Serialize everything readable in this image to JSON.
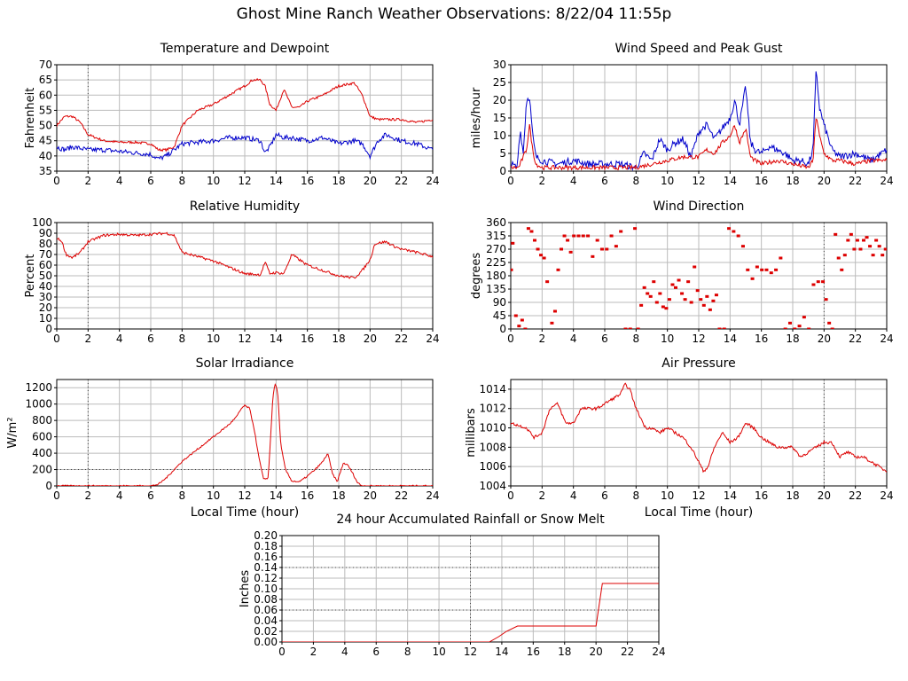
{
  "title": "Ghost Mine Ranch Weather Observations: 8/22/04 11:55p",
  "colors": {
    "red": "#dd0000",
    "blue": "#0000cc",
    "grid": "#bbbbbb",
    "ref": "#444444"
  },
  "chart_data": [
    {
      "id": "temp",
      "type": "line",
      "title": "Temperature and Dewpoint",
      "xlabel": "",
      "ylabel": "Fahrenheit",
      "xlim": [
        0,
        24
      ],
      "ylim": [
        35,
        70
      ],
      "xticks": [
        0,
        2,
        4,
        6,
        8,
        10,
        12,
        14,
        16,
        18,
        20,
        22,
        24
      ],
      "yticks": [
        35,
        40,
        45,
        50,
        55,
        60,
        65,
        70
      ],
      "ref_x": [
        2
      ],
      "ref_y": [],
      "series": [
        {
          "color": "red",
          "noise": 0.4,
          "x": [
            0,
            0.5,
            1,
            1.5,
            2,
            3,
            4,
            5,
            6,
            6.5,
            7,
            7.5,
            8,
            9,
            10,
            11,
            12,
            12.5,
            13,
            13.3,
            13.6,
            14,
            14.5,
            15,
            15.5,
            16,
            17,
            18,
            19,
            19.5,
            20,
            20.5,
            21,
            22,
            23,
            24
          ],
          "y": [
            50,
            53,
            53,
            51,
            47,
            45,
            44.5,
            44.5,
            44,
            42,
            42,
            43,
            50,
            55,
            57,
            60,
            63,
            65,
            65,
            63,
            57,
            55,
            62,
            56,
            56,
            58,
            60,
            63,
            64,
            60,
            53,
            52,
            52,
            52,
            51,
            52
          ]
        },
        {
          "color": "blue",
          "noise": 0.8,
          "x": [
            0,
            0.5,
            1,
            2,
            3,
            4,
            5,
            6,
            6.5,
            7,
            8,
            9,
            10,
            11,
            12,
            13,
            13.3,
            13.6,
            14,
            14.5,
            15,
            16,
            17,
            18,
            19,
            19.5,
            20,
            20.5,
            21,
            22,
            23,
            24
          ],
          "y": [
            43,
            42,
            43,
            42,
            42,
            41.5,
            41,
            40.5,
            39,
            40,
            44,
            44.5,
            45,
            46,
            46,
            45,
            41,
            43,
            47,
            46,
            46,
            45,
            46,
            44,
            45,
            44,
            40,
            45,
            47,
            45,
            44,
            42
          ]
        }
      ]
    },
    {
      "id": "wind",
      "type": "line",
      "title": "Wind Speed and Peak Gust",
      "xlabel": "",
      "ylabel": "miles/hour",
      "xlim": [
        0,
        24
      ],
      "ylim": [
        0,
        30
      ],
      "xticks": [
        0,
        2,
        4,
        6,
        8,
        10,
        12,
        14,
        16,
        18,
        20,
        22,
        24
      ],
      "yticks": [
        0,
        5,
        10,
        15,
        20,
        25,
        30
      ],
      "ref_x": [],
      "ref_y": [],
      "series": [
        {
          "color": "blue",
          "noise": 1.0,
          "x": [
            0,
            0.4,
            0.6,
            0.8,
            1,
            1.2,
            1.4,
            1.6,
            2,
            3,
            4,
            5,
            6,
            7,
            8,
            8.5,
            9,
            9.5,
            10,
            10.5,
            11,
            11.5,
            12,
            12.5,
            13,
            13.5,
            14,
            14.3,
            14.6,
            15,
            15.3,
            15.6,
            16,
            16.5,
            17,
            17.5,
            18,
            18.5,
            19,
            19.3,
            19.5,
            19.7,
            20,
            20.5,
            21,
            22,
            23,
            24
          ],
          "y": [
            2,
            1,
            12,
            5,
            20,
            21,
            10,
            4,
            3,
            2,
            3,
            2,
            2,
            2,
            1,
            5,
            3,
            9,
            6,
            8,
            9,
            4,
            11,
            13,
            9,
            12,
            15,
            20,
            13,
            24,
            8,
            6,
            5,
            7,
            6,
            5,
            3,
            3,
            2,
            6,
            29,
            18,
            13,
            6,
            4,
            5,
            3,
            6
          ]
        },
        {
          "color": "red",
          "noise": 0.6,
          "x": [
            0,
            0.5,
            1,
            1.2,
            1.4,
            1.6,
            2,
            3,
            4,
            5,
            6,
            7,
            8,
            9,
            10,
            11,
            12,
            12.5,
            13,
            13.5,
            14,
            14.3,
            14.6,
            15,
            15.3,
            15.6,
            16,
            17,
            18,
            19,
            19.3,
            19.5,
            19.7,
            20,
            20.5,
            21,
            22,
            23,
            24
          ],
          "y": [
            1,
            1,
            6,
            13,
            6,
            2,
            1,
            1,
            1,
            1,
            1,
            1,
            1,
            2,
            3,
            4,
            4,
            6,
            5,
            8,
            10,
            13,
            8,
            12,
            4,
            3,
            2,
            3,
            2,
            1,
            3,
            16,
            10,
            5,
            3,
            3,
            2,
            3,
            3
          ]
        }
      ]
    },
    {
      "id": "rh",
      "type": "line",
      "title": "Relative Humidity",
      "xlabel": "",
      "ylabel": "Percent",
      "xlim": [
        0,
        24
      ],
      "ylim": [
        0,
        100
      ],
      "xticks": [
        0,
        2,
        4,
        6,
        8,
        10,
        12,
        14,
        16,
        18,
        20,
        22,
        24
      ],
      "yticks": [
        0,
        10,
        20,
        30,
        40,
        50,
        60,
        70,
        80,
        90,
        100
      ],
      "ref_x": [
        2
      ],
      "ref_y": [],
      "series": [
        {
          "color": "red",
          "noise": 1.2,
          "x": [
            0,
            0.3,
            0.6,
            1,
            1.5,
            2,
            3,
            4,
            5,
            6,
            7,
            7.5,
            8,
            9,
            10,
            11,
            12,
            13,
            13.3,
            13.6,
            14,
            14.5,
            15,
            15.5,
            16,
            17,
            18,
            19,
            19.5,
            20,
            20.3,
            21,
            21.5,
            22,
            23,
            24
          ],
          "y": [
            85,
            83,
            70,
            67,
            72,
            82,
            88,
            89,
            88,
            89,
            90,
            88,
            72,
            68,
            64,
            58,
            52,
            51,
            63,
            52,
            53,
            52,
            70,
            65,
            60,
            55,
            50,
            48,
            55,
            65,
            80,
            82,
            78,
            75,
            72,
            68
          ]
        }
      ]
    },
    {
      "id": "dir",
      "type": "scatter",
      "title": "Wind Direction",
      "xlabel": "",
      "ylabel": "degrees",
      "xlim": [
        0,
        24
      ],
      "ylim": [
        0,
        360
      ],
      "xticks": [
        0,
        2,
        4,
        6,
        8,
        10,
        12,
        14,
        16,
        18,
        20,
        22,
        24
      ],
      "yticks": [
        0,
        45,
        90,
        135,
        180,
        225,
        270,
        315,
        360
      ],
      "ref_x": [
        20
      ],
      "ref_y": [],
      "series": [
        {
          "color": "red",
          "noise": 0,
          "x": [
            0,
            0.1,
            0.3,
            0.5,
            0.7,
            0.9,
            1.1,
            1.3,
            1.5,
            1.7,
            1.9,
            2.1,
            2.3,
            2.6,
            2.8,
            3,
            3.2,
            3.4,
            3.6,
            3.8,
            4,
            4.3,
            4.6,
            4.9,
            5.2,
            5.5,
            5.8,
            6.1,
            6.4,
            6.7,
            7,
            7.3,
            7.6,
            7.9,
            8.1,
            8.3,
            8.5,
            8.7,
            8.9,
            9.1,
            9.3,
            9.5,
            9.7,
            9.9,
            10.1,
            10.3,
            10.5,
            10.7,
            10.9,
            11.1,
            11.3,
            11.5,
            11.7,
            11.9,
            12.1,
            12.3,
            12.5,
            12.7,
            12.9,
            13.1,
            13.3,
            13.6,
            13.9,
            14.2,
            14.5,
            14.8,
            15.1,
            15.4,
            15.7,
            16,
            16.3,
            16.6,
            16.9,
            17.2,
            17.5,
            17.8,
            18.1,
            18.4,
            18.7,
            19,
            19.3,
            19.6,
            19.9,
            20.1,
            20.3,
            20.5,
            20.7,
            20.9,
            21.1,
            21.3,
            21.5,
            21.7,
            21.9,
            22.1,
            22.3,
            22.5,
            22.7,
            22.9,
            23.1,
            23.3,
            23.5,
            23.7,
            23.9
          ],
          "y": [
            200,
            290,
            45,
            10,
            30,
            0,
            340,
            330,
            300,
            270,
            250,
            240,
            160,
            20,
            60,
            200,
            270,
            315,
            300,
            260,
            315,
            315,
            315,
            315,
            245,
            300,
            270,
            270,
            315,
            280,
            330,
            0,
            0,
            340,
            0,
            80,
            140,
            120,
            110,
            160,
            90,
            120,
            75,
            70,
            100,
            150,
            140,
            165,
            120,
            100,
            160,
            90,
            210,
            130,
            100,
            80,
            110,
            65,
            95,
            115,
            0,
            0,
            340,
            330,
            315,
            280,
            200,
            170,
            210,
            200,
            200,
            190,
            200,
            240,
            0,
            20,
            0,
            10,
            40,
            0,
            150,
            160,
            160,
            100,
            20,
            0,
            320,
            240,
            200,
            250,
            300,
            320,
            270,
            300,
            270,
            300,
            310,
            280,
            250,
            300,
            280,
            250,
            270
          ]
        }
      ]
    },
    {
      "id": "solar",
      "type": "line",
      "title": "Solar Irradiance",
      "xlabel": "Local Time (hour)",
      "ylabel": "W/m²",
      "xlim": [
        0,
        24
      ],
      "ylim": [
        0,
        1300
      ],
      "xticks": [
        0,
        2,
        4,
        6,
        8,
        10,
        12,
        14,
        16,
        18,
        20,
        22,
        24
      ],
      "yticks": [
        0,
        200,
        400,
        600,
        800,
        1000,
        1200
      ],
      "ref_x": [
        2
      ],
      "ref_y": [
        200
      ],
      "series": [
        {
          "color": "red",
          "noise": 10,
          "x": [
            0,
            6,
            6.5,
            7,
            7.5,
            8,
            9,
            10,
            11,
            11.5,
            11.8,
            12,
            12.3,
            12.6,
            12.9,
            13.2,
            13.5,
            13.8,
            13.95,
            14.1,
            14.3,
            14.6,
            15,
            15.5,
            16,
            16.5,
            17,
            17.3,
            17.6,
            17.9,
            18.3,
            18.6,
            18.9,
            19.2,
            19.5,
            20,
            24
          ],
          "y": [
            0,
            0,
            20,
            100,
            200,
            300,
            450,
            600,
            750,
            850,
            950,
            980,
            950,
            700,
            350,
            80,
            100,
            1100,
            1250,
            1150,
            500,
            200,
            60,
            50,
            120,
            200,
            300,
            400,
            150,
            50,
            280,
            250,
            150,
            40,
            0,
            0,
            0
          ]
        }
      ]
    },
    {
      "id": "press",
      "type": "line",
      "title": "Air Pressure",
      "xlabel": "Local Time (hour)",
      "ylabel": "millibars",
      "xlim": [
        0,
        24
      ],
      "ylim": [
        1004,
        1015
      ],
      "xticks": [
        0,
        2,
        4,
        6,
        8,
        10,
        12,
        14,
        16,
        18,
        20,
        22,
        24
      ],
      "yticks": [
        1004,
        1006,
        1008,
        1010,
        1012,
        1014
      ],
      "ref_x": [
        20
      ],
      "ref_y": [],
      "series": [
        {
          "color": "red",
          "noise": 0.15,
          "x": [
            0,
            1,
            1.5,
            2,
            2.5,
            3,
            3.5,
            4,
            4.5,
            5,
            5.5,
            6,
            6.5,
            7,
            7.3,
            7.6,
            8,
            8.3,
            8.6,
            9,
            9.5,
            10,
            10.5,
            11,
            11.5,
            12,
            12.3,
            12.6,
            13,
            13.5,
            14,
            14.5,
            15,
            15.5,
            16,
            16.5,
            17,
            18,
            18.5,
            19,
            19.5,
            20,
            20.5,
            21,
            21.5,
            22,
            22.5,
            23,
            23.5,
            24
          ],
          "y": [
            1010.5,
            1010,
            1009,
            1009.5,
            1012,
            1012.5,
            1010.5,
            1010.5,
            1012,
            1012,
            1012,
            1012.5,
            1013,
            1013.5,
            1014.5,
            1014,
            1012,
            1011,
            1010,
            1010,
            1009.5,
            1010,
            1009.5,
            1009,
            1008,
            1006.5,
            1005.5,
            1006,
            1008,
            1009.5,
            1008.5,
            1009,
            1010.5,
            1010,
            1009,
            1008.5,
            1008,
            1008,
            1007,
            1007.5,
            1008,
            1008.5,
            1008.5,
            1007,
            1007.5,
            1007,
            1007,
            1006.5,
            1006,
            1005.5
          ]
        }
      ]
    },
    {
      "id": "rain",
      "type": "line",
      "title": "24 hour Accumulated Rainfall or Snow Melt",
      "xlabel": "",
      "ylabel": "Inches",
      "xlim": [
        0,
        24
      ],
      "ylim": [
        0,
        0.2
      ],
      "xticks": [
        0,
        2,
        4,
        6,
        8,
        10,
        12,
        14,
        16,
        18,
        20,
        22,
        24
      ],
      "yticks": [
        0,
        0.02,
        0.04,
        0.06,
        0.08,
        0.1,
        0.12,
        0.14,
        0.16,
        0.18,
        0.2
      ],
      "ytick_labels": [
        "0.00",
        "0.02",
        "0.04",
        "0.06",
        "0.08",
        "0.10",
        "0.12",
        "0.14",
        "0.16",
        "0.18",
        "0.20"
      ],
      "ref_x": [
        12
      ],
      "ref_y": [
        0.06,
        0.14
      ],
      "series": [
        {
          "color": "red",
          "noise": 0,
          "step": true,
          "x": [
            0,
            13.2,
            13.8,
            14.3,
            15.0,
            16.0,
            20.0,
            20.4,
            24
          ],
          "y": [
            0,
            0,
            0.01,
            0.02,
            0.03,
            0.03,
            0.03,
            0.11,
            0.11
          ]
        }
      ]
    }
  ]
}
